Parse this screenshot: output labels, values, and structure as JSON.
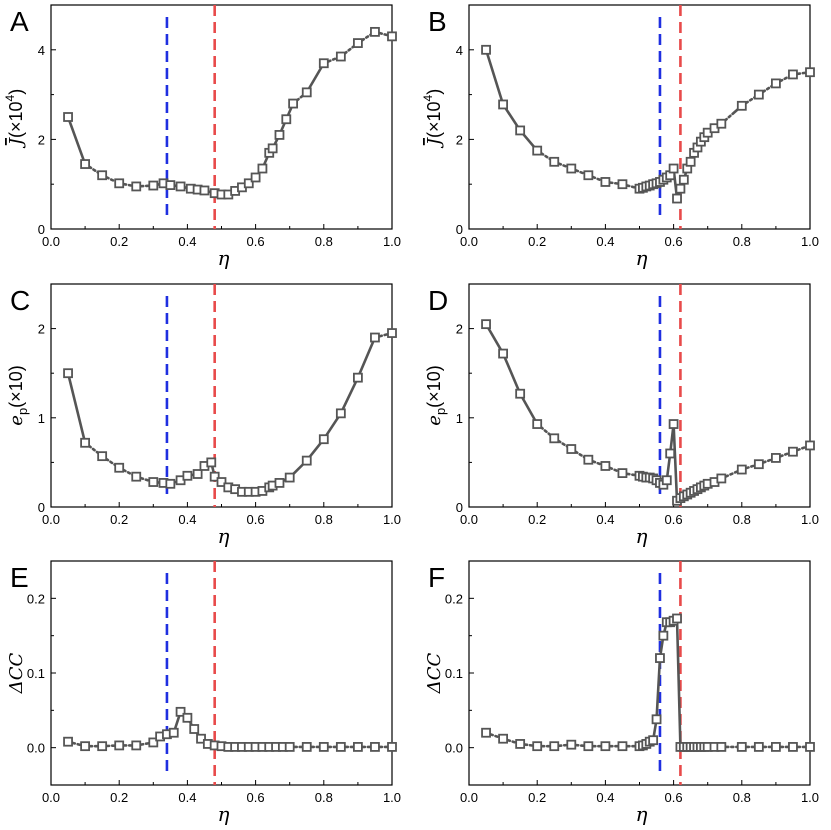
{
  "figure": {
    "common_xlabel": "η",
    "x_ticks": [
      "0.0",
      "0.2",
      "0.4",
      "0.6",
      "0.8",
      "1.0"
    ],
    "line_color": "#555555",
    "marker_fill": "#ffffff",
    "blue_line_color": "#1f2fe0",
    "red_line_color": "#e84a4a"
  },
  "chart_data": [
    {
      "panel": "A",
      "type": "line",
      "xlabel": "η",
      "ylabel_main": "J",
      "ylabel_overbar": true,
      "ylabel_suffix": "(×10",
      "ylabel_sup": "4",
      "ylabel_close": ")",
      "xlim": [
        0,
        1
      ],
      "ylim": [
        0,
        5
      ],
      "yticks": [
        0,
        2,
        4
      ],
      "ytick_labels": [
        "0",
        "2",
        "4"
      ],
      "blue_vline": 0.34,
      "red_vline": 0.48,
      "x": [
        0.05,
        0.1,
        0.15,
        0.2,
        0.25,
        0.3,
        0.33,
        0.35,
        0.38,
        0.41,
        0.43,
        0.45,
        0.48,
        0.5,
        0.52,
        0.54,
        0.56,
        0.58,
        0.6,
        0.62,
        0.64,
        0.65,
        0.67,
        0.69,
        0.71,
        0.75,
        0.8,
        0.85,
        0.9,
        0.95,
        1.0
      ],
      "y": [
        2.5,
        1.45,
        1.2,
        1.02,
        0.95,
        0.97,
        1.02,
        0.98,
        0.95,
        0.9,
        0.88,
        0.86,
        0.8,
        0.77,
        0.77,
        0.85,
        0.93,
        1.02,
        1.15,
        1.35,
        1.7,
        1.8,
        2.1,
        2.45,
        2.8,
        3.05,
        3.7,
        3.85,
        4.15,
        4.4,
        4.3
      ]
    },
    {
      "panel": "B",
      "type": "line",
      "xlabel": "η",
      "ylabel_main": "J",
      "ylabel_overbar": true,
      "ylabel_suffix": "(×10",
      "ylabel_sup": "4",
      "ylabel_close": ")",
      "xlim": [
        0,
        1
      ],
      "ylim": [
        0,
        5
      ],
      "yticks": [
        0,
        2,
        4
      ],
      "ytick_labels": [
        "0",
        "2",
        "4"
      ],
      "blue_vline": 0.56,
      "red_vline": 0.62,
      "x": [
        0.05,
        0.1,
        0.15,
        0.2,
        0.25,
        0.3,
        0.35,
        0.4,
        0.45,
        0.5,
        0.51,
        0.52,
        0.53,
        0.54,
        0.55,
        0.56,
        0.57,
        0.58,
        0.59,
        0.6,
        0.61,
        0.62,
        0.63,
        0.64,
        0.65,
        0.66,
        0.67,
        0.68,
        0.69,
        0.7,
        0.72,
        0.74,
        0.8,
        0.85,
        0.9,
        0.95,
        1.0
      ],
      "y": [
        4.0,
        2.78,
        2.2,
        1.75,
        1.5,
        1.35,
        1.2,
        1.05,
        1.0,
        0.9,
        0.92,
        0.95,
        0.97,
        1.0,
        1.02,
        1.05,
        1.1,
        1.15,
        1.2,
        1.35,
        0.68,
        0.9,
        1.1,
        1.35,
        1.5,
        1.7,
        1.82,
        1.95,
        2.05,
        2.15,
        2.25,
        2.35,
        2.75,
        3.0,
        3.25,
        3.45,
        3.5
      ]
    },
    {
      "panel": "C",
      "type": "line",
      "xlabel": "η",
      "ylabel_main": "e",
      "ylabel_sub": "p",
      "ylabel_suffix": "(×10)",
      "xlim": [
        0,
        1
      ],
      "ylim": [
        0,
        2.5
      ],
      "yticks": [
        0,
        1,
        2
      ],
      "ytick_labels": [
        "0",
        "1",
        "2"
      ],
      "blue_vline": 0.34,
      "red_vline": 0.48,
      "x": [
        0.05,
        0.1,
        0.15,
        0.2,
        0.25,
        0.3,
        0.33,
        0.35,
        0.38,
        0.4,
        0.43,
        0.45,
        0.47,
        0.48,
        0.5,
        0.52,
        0.54,
        0.56,
        0.58,
        0.6,
        0.62,
        0.64,
        0.65,
        0.67,
        0.7,
        0.75,
        0.8,
        0.85,
        0.9,
        0.95,
        1.0
      ],
      "y": [
        1.5,
        0.72,
        0.57,
        0.44,
        0.34,
        0.28,
        0.27,
        0.26,
        0.3,
        0.35,
        0.37,
        0.46,
        0.5,
        0.34,
        0.28,
        0.22,
        0.2,
        0.17,
        0.17,
        0.17,
        0.18,
        0.22,
        0.24,
        0.27,
        0.33,
        0.52,
        0.76,
        1.05,
        1.45,
        1.9,
        1.95
      ]
    },
    {
      "panel": "D",
      "type": "line",
      "xlabel": "η",
      "ylabel_main": "e",
      "ylabel_sub": "p",
      "ylabel_suffix": "(×10)",
      "xlim": [
        0,
        1
      ],
      "ylim": [
        0,
        2.5
      ],
      "yticks": [
        0,
        1,
        2
      ],
      "ytick_labels": [
        "0",
        "1",
        "2"
      ],
      "blue_vline": 0.56,
      "red_vline": 0.62,
      "x": [
        0.05,
        0.1,
        0.15,
        0.2,
        0.25,
        0.3,
        0.35,
        0.4,
        0.45,
        0.5,
        0.51,
        0.52,
        0.53,
        0.54,
        0.55,
        0.56,
        0.57,
        0.58,
        0.59,
        0.6,
        0.61,
        0.62,
        0.63,
        0.64,
        0.65,
        0.66,
        0.67,
        0.68,
        0.69,
        0.7,
        0.72,
        0.74,
        0.8,
        0.85,
        0.9,
        0.95,
        1.0
      ],
      "y": [
        2.05,
        1.72,
        1.27,
        0.93,
        0.77,
        0.65,
        0.53,
        0.46,
        0.38,
        0.35,
        0.34,
        0.33,
        0.33,
        0.32,
        0.3,
        0.27,
        0.25,
        0.3,
        0.6,
        0.93,
        0.07,
        0.1,
        0.12,
        0.14,
        0.16,
        0.18,
        0.2,
        0.22,
        0.24,
        0.26,
        0.28,
        0.32,
        0.42,
        0.48,
        0.55,
        0.62,
        0.69
      ]
    },
    {
      "panel": "E",
      "type": "line",
      "xlabel": "η",
      "ylabel_main": "ΔCC",
      "xlim": [
        0,
        1
      ],
      "ylim": [
        -0.05,
        0.25
      ],
      "yticks": [
        0.0,
        0.1,
        0.2
      ],
      "ytick_labels": [
        "0.0",
        "0.1",
        "0.2"
      ],
      "blue_vline": 0.34,
      "red_vline": 0.48,
      "x": [
        0.05,
        0.1,
        0.15,
        0.2,
        0.25,
        0.3,
        0.32,
        0.34,
        0.36,
        0.38,
        0.4,
        0.42,
        0.44,
        0.46,
        0.48,
        0.5,
        0.52,
        0.54,
        0.56,
        0.58,
        0.6,
        0.62,
        0.64,
        0.66,
        0.68,
        0.7,
        0.75,
        0.8,
        0.85,
        0.9,
        0.95,
        1.0
      ],
      "y": [
        0.008,
        0.002,
        0.002,
        0.003,
        0.003,
        0.007,
        0.015,
        0.018,
        0.02,
        0.048,
        0.04,
        0.025,
        0.012,
        0.005,
        0.003,
        0.002,
        0.001,
        0.001,
        0.001,
        0.001,
        0.001,
        0.001,
        0.001,
        0.001,
        0.001,
        0.001,
        0.001,
        0.001,
        0.001,
        0.001,
        0.001,
        0.001
      ]
    },
    {
      "panel": "F",
      "type": "line",
      "xlabel": "η",
      "ylabel_main": "ΔCC",
      "xlim": [
        0,
        1
      ],
      "ylim": [
        -0.05,
        0.25
      ],
      "yticks": [
        0.0,
        0.1,
        0.2
      ],
      "ytick_labels": [
        "0.0",
        "0.1",
        "0.2"
      ],
      "blue_vline": 0.56,
      "red_vline": 0.62,
      "x": [
        0.05,
        0.1,
        0.15,
        0.2,
        0.25,
        0.3,
        0.35,
        0.4,
        0.45,
        0.5,
        0.51,
        0.52,
        0.53,
        0.54,
        0.55,
        0.56,
        0.57,
        0.58,
        0.59,
        0.6,
        0.61,
        0.62,
        0.63,
        0.64,
        0.65,
        0.66,
        0.67,
        0.68,
        0.69,
        0.7,
        0.72,
        0.74,
        0.8,
        0.85,
        0.9,
        0.95,
        1.0
      ],
      "y": [
        0.02,
        0.012,
        0.005,
        0.002,
        0.002,
        0.004,
        0.002,
        0.002,
        0.002,
        0.002,
        0.003,
        0.005,
        0.008,
        0.01,
        0.038,
        0.12,
        0.15,
        0.168,
        0.168,
        0.17,
        0.173,
        0.001,
        0.001,
        0.001,
        0.001,
        0.001,
        0.001,
        0.001,
        0.001,
        0.001,
        0.001,
        0.001,
        0.001,
        0.001,
        0.001,
        0.001,
        0.001
      ]
    }
  ]
}
